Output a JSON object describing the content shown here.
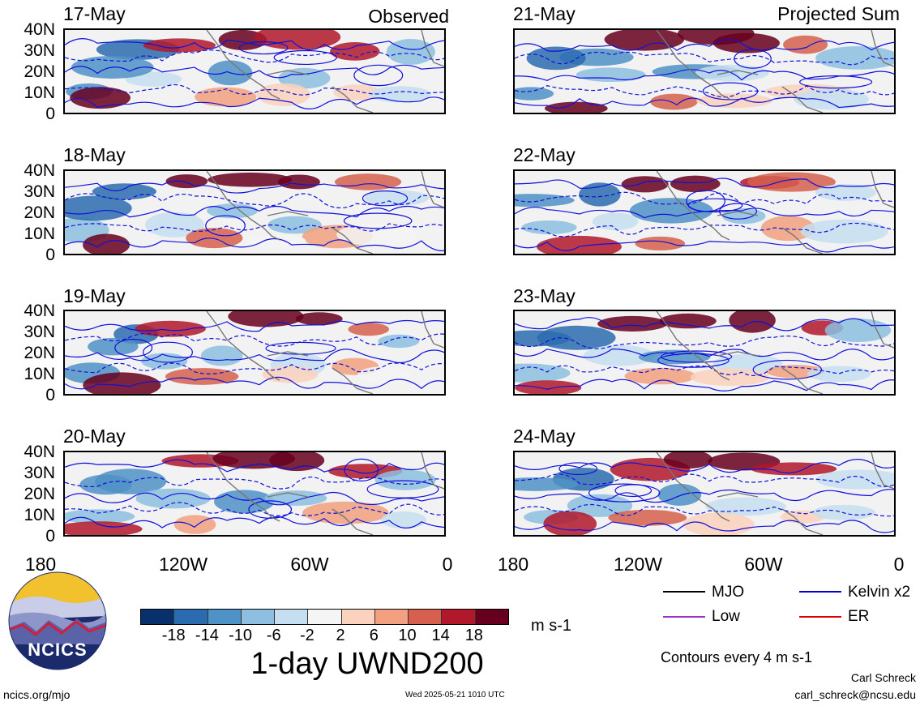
{
  "panels_left": [
    {
      "date": "17-May",
      "corner": "Observed"
    },
    {
      "date": "18-May",
      "corner": ""
    },
    {
      "date": "19-May",
      "corner": ""
    },
    {
      "date": "20-May",
      "corner": ""
    }
  ],
  "panels_right": [
    {
      "date": "21-May",
      "corner": "Projected Sum"
    },
    {
      "date": "22-May",
      "corner": ""
    },
    {
      "date": "23-May",
      "corner": ""
    },
    {
      "date": "24-May",
      "corner": ""
    }
  ],
  "lat_labels": [
    "40N",
    "30N",
    "20N",
    "10N",
    "0"
  ],
  "lon_labels": [
    "180",
    "120W",
    "60W",
    "0"
  ],
  "colorbar": {
    "labels": [
      "-18",
      "-14",
      "-10",
      "-6",
      "-2",
      "2",
      "6",
      "10",
      "14",
      "18"
    ],
    "colors": [
      "#08306b",
      "#2b6cb0",
      "#4f92c6",
      "#8cbfe0",
      "#c6dff0",
      "#f5f5f5",
      "#fbd2bd",
      "#f2a07f",
      "#d6604d",
      "#b2182b",
      "#67001f"
    ],
    "units": "m s-1"
  },
  "title": "1-day UWND200",
  "legend": {
    "items": [
      {
        "label": "MJO",
        "color": "#000000"
      },
      {
        "label": "Kelvin x2",
        "color": "#0000cc"
      },
      {
        "label": "Low",
        "color": "#9933cc"
      },
      {
        "label": "ER",
        "color": "#dd0000"
      }
    ],
    "contours_note": "Contours every 4 m s-1"
  },
  "logo_text": "NCICS",
  "footer": {
    "url": "ncics.org/mjo",
    "timestamp": "Wed 2025-05-21 1010 UTC",
    "author": "Carl Schreck",
    "email": "carl_schreck@ncsu.edu"
  }
}
